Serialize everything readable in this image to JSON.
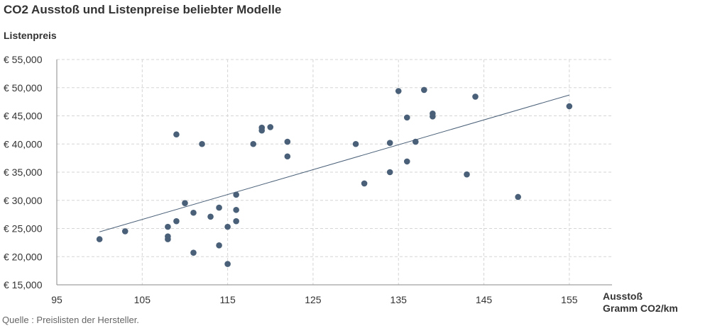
{
  "title": "CO2 Ausstoß und Listenpreise beliebter Modelle",
  "source": "Quelle : Preislisten der Hersteller.",
  "colors": {
    "point": "#4a6078",
    "trend": "#4a6078",
    "grid": "#d5d5d5",
    "axis": "#888888"
  },
  "chart_data": {
    "type": "scatter",
    "title": "CO2 Ausstoß und Listenpreise beliebter Modelle",
    "ylabel": "Listenpreis",
    "xlabel_lines": [
      "Ausstoß",
      "Gramm CO2/km"
    ],
    "xlim": [
      95,
      160
    ],
    "ylim": [
      15000,
      55000
    ],
    "xticks": [
      95,
      105,
      115,
      125,
      135,
      145,
      155
    ],
    "yticks": [
      15000,
      20000,
      25000,
      30000,
      35000,
      40000,
      45000,
      50000,
      55000
    ],
    "ytick_labels": [
      "€ 15,000",
      "€ 20,000",
      "€ 25,000",
      "€ 30,000",
      "€ 35,000",
      "€ 40,000",
      "€ 45,000",
      "€ 50,000",
      "€ 55,000"
    ],
    "grid": true,
    "points": [
      {
        "x": 100,
        "y": 23100
      },
      {
        "x": 103,
        "y": 24500
      },
      {
        "x": 108,
        "y": 25300
      },
      {
        "x": 108,
        "y": 23600
      },
      {
        "x": 108,
        "y": 23100
      },
      {
        "x": 109,
        "y": 26300
      },
      {
        "x": 109,
        "y": 41700
      },
      {
        "x": 110,
        "y": 29500
      },
      {
        "x": 111,
        "y": 27800
      },
      {
        "x": 111,
        "y": 20700
      },
      {
        "x": 112,
        "y": 40000
      },
      {
        "x": 113,
        "y": 27100
      },
      {
        "x": 114,
        "y": 28700
      },
      {
        "x": 114,
        "y": 22000
      },
      {
        "x": 115,
        "y": 25300
      },
      {
        "x": 115,
        "y": 18700
      },
      {
        "x": 116,
        "y": 31000
      },
      {
        "x": 116,
        "y": 28300
      },
      {
        "x": 116,
        "y": 26300
      },
      {
        "x": 118,
        "y": 40000
      },
      {
        "x": 119,
        "y": 42900
      },
      {
        "x": 119,
        "y": 42400
      },
      {
        "x": 120,
        "y": 43000
      },
      {
        "x": 122,
        "y": 40400
      },
      {
        "x": 122,
        "y": 37800
      },
      {
        "x": 130,
        "y": 40000
      },
      {
        "x": 131,
        "y": 33000
      },
      {
        "x": 134,
        "y": 40200
      },
      {
        "x": 134,
        "y": 35000
      },
      {
        "x": 135,
        "y": 49400
      },
      {
        "x": 136,
        "y": 44700
      },
      {
        "x": 136,
        "y": 36900
      },
      {
        "x": 137,
        "y": 40400
      },
      {
        "x": 138,
        "y": 49600
      },
      {
        "x": 139,
        "y": 45400
      },
      {
        "x": 139,
        "y": 44900
      },
      {
        "x": 143,
        "y": 34600
      },
      {
        "x": 144,
        "y": 48400
      },
      {
        "x": 149,
        "y": 30600
      },
      {
        "x": 155,
        "y": 46700
      }
    ],
    "trendline": {
      "x1": 100,
      "y1": 24400,
      "x2": 155,
      "y2": 48700
    }
  }
}
